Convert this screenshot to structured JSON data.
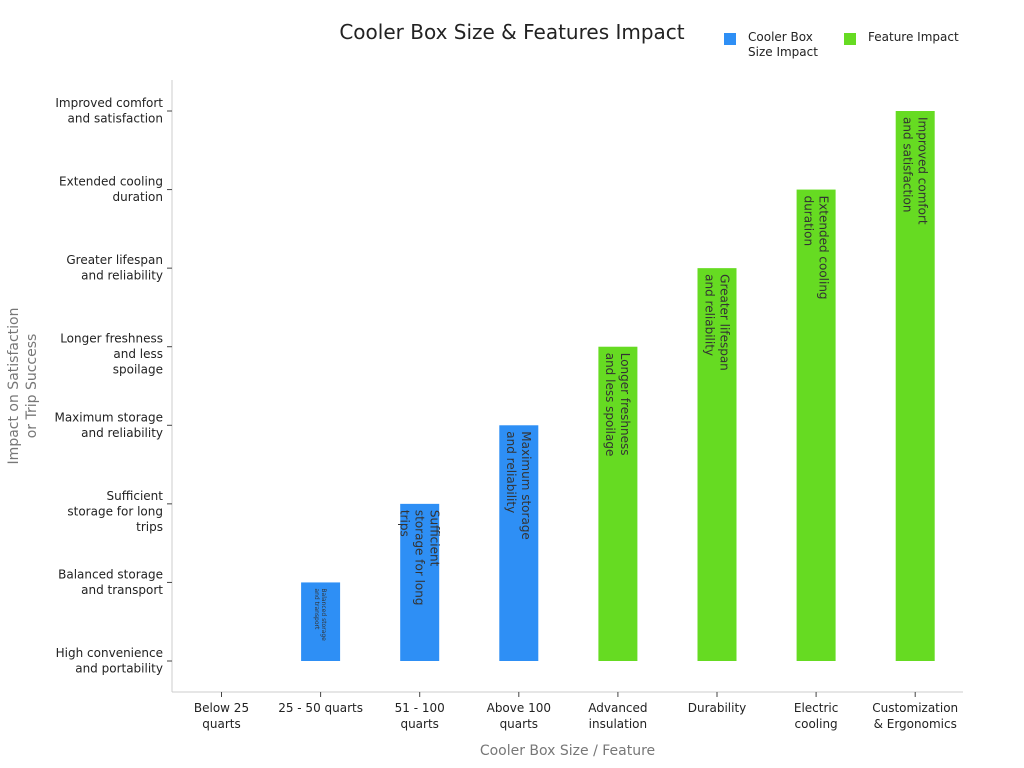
{
  "chart_data": {
    "type": "bar",
    "title": "Cooler Box Size & Features Impact",
    "xlabel": "Cooler Box Size / Feature",
    "ylabel": "Impact on Satisfaction or Trip Success",
    "categories": [
      "Below 25 quarts",
      "25 - 50 quarts",
      "51 - 100 quarts",
      "Above 100 quarts",
      "Advanced insulation",
      "Durability",
      "Electric cooling",
      "Customization & Ergonomics"
    ],
    "y_levels": [
      "High convenience and portability",
      "Balanced storage and transport",
      "Sufficient storage for long trips",
      "Maximum storage and reliability",
      "Longer freshness and less spoilage",
      "Greater lifespan and reliability",
      "Extended cooling duration",
      "Improved comfort and satisfaction"
    ],
    "ylim": [
      0,
      7
    ],
    "grid": false,
    "legend_position": "top-right",
    "series": [
      {
        "name": "Cooler Box Size Impact",
        "color": "#2e8ff5",
        "values": [
          0,
          1,
          2,
          3,
          null,
          null,
          null,
          null
        ],
        "labels": [
          "High convenience and portability",
          "Balanced storage and transport",
          "Sufficient storage for long trips",
          "Maximum storage and reliability",
          null,
          null,
          null,
          null
        ]
      },
      {
        "name": "Feature Impact",
        "color": "#66db22",
        "values": [
          null,
          null,
          null,
          null,
          4,
          5,
          6,
          7
        ],
        "labels": [
          null,
          null,
          null,
          null,
          "Longer freshness and less spoilage",
          "Greater lifespan and reliability",
          "Extended cooling duration",
          "Improved comfort and satisfaction"
        ]
      }
    ]
  }
}
